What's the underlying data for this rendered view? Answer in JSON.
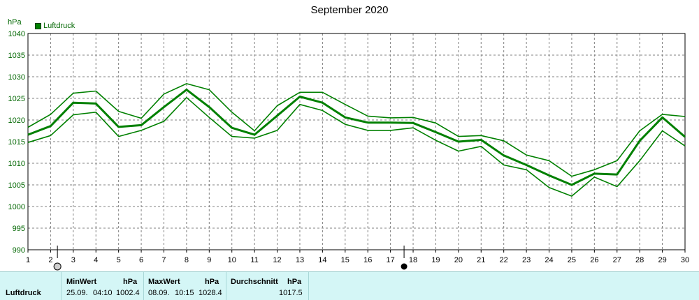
{
  "chart_data": {
    "type": "line",
    "title": "September 2020",
    "ylabel": "hPa",
    "ylim": [
      990,
      1040
    ],
    "yticks": [
      "990",
      "995",
      "1000",
      "1005",
      "1010",
      "1015",
      "1020",
      "1025",
      "1030",
      "1035",
      "1040"
    ],
    "x": [
      1,
      2,
      3,
      4,
      5,
      6,
      7,
      8,
      9,
      10,
      11,
      12,
      13,
      14,
      15,
      16,
      17,
      18,
      19,
      20,
      21,
      22,
      23,
      24,
      25,
      26,
      27,
      28,
      29,
      30
    ],
    "xticks": [
      "1",
      "2",
      "3",
      "4",
      "5",
      "6",
      "7",
      "8",
      "9",
      "10",
      "11",
      "12",
      "13",
      "14",
      "15",
      "16",
      "17",
      "18",
      "19",
      "20",
      "21",
      "22",
      "23",
      "24",
      "25",
      "26",
      "27",
      "28",
      "29",
      "30"
    ],
    "xlim": [
      1,
      30
    ],
    "grid": true,
    "legend": {
      "position": "top-left",
      "label": "Luftdruck"
    },
    "series": [
      {
        "name": "Luftdruck",
        "role": "max",
        "values": [
          1018.3,
          1021.3,
          1026.2,
          1026.7,
          1022.0,
          1020.4,
          1026.0,
          1028.4,
          1027.0,
          1021.8,
          1017.5,
          1023.3,
          1026.4,
          1026.4,
          1023.6,
          1020.9,
          1020.5,
          1020.6,
          1019.3,
          1016.2,
          1016.4,
          1015.2,
          1011.9,
          1010.6,
          1007.0,
          1008.5,
          1010.6,
          1017.5,
          1021.3,
          1020.8
        ],
        "color": "#008000"
      },
      {
        "name": "Luftdruck",
        "role": "mean",
        "values": [
          1016.6,
          1018.6,
          1024.0,
          1023.8,
          1018.4,
          1018.8,
          1023.0,
          1027.0,
          1023.0,
          1018.2,
          1016.6,
          1021.0,
          1025.4,
          1024.0,
          1020.6,
          1019.4,
          1019.4,
          1019.3,
          1017.2,
          1015.0,
          1015.4,
          1011.8,
          1009.6,
          1007.2,
          1005.0,
          1007.6,
          1007.4,
          1015.2,
          1020.6,
          1016.1
        ],
        "color": "#008000"
      },
      {
        "name": "Luftdruck",
        "role": "min",
        "values": [
          1014.8,
          1016.4,
          1021.2,
          1021.8,
          1016.2,
          1017.6,
          1019.7,
          1025.2,
          1020.6,
          1016.2,
          1015.8,
          1017.6,
          1023.6,
          1022.2,
          1019.0,
          1017.6,
          1017.6,
          1018.2,
          1015.3,
          1012.8,
          1013.9,
          1009.6,
          1008.5,
          1004.4,
          1002.4,
          1006.8,
          1004.6,
          1010.6,
          1017.5,
          1014.0
        ],
        "color": "#008000"
      }
    ],
    "markers": [
      {
        "x": 2.3,
        "symbol": "open-circle"
      },
      {
        "x": 17.6,
        "symbol": "filled-circle"
      }
    ]
  },
  "stats": {
    "row_label": "Luftdruck",
    "min": {
      "header": "MinWert",
      "unit": "hPa",
      "date": "25.09.",
      "time": "04:10",
      "value": "1002.4"
    },
    "max": {
      "header": "MaxWert",
      "unit": "hPa",
      "date": "08.09.",
      "time": "10:15",
      "value": "1028.4"
    },
    "avg": {
      "header": "Durchschnitt",
      "unit": "hPa",
      "value": "1017.5"
    }
  }
}
